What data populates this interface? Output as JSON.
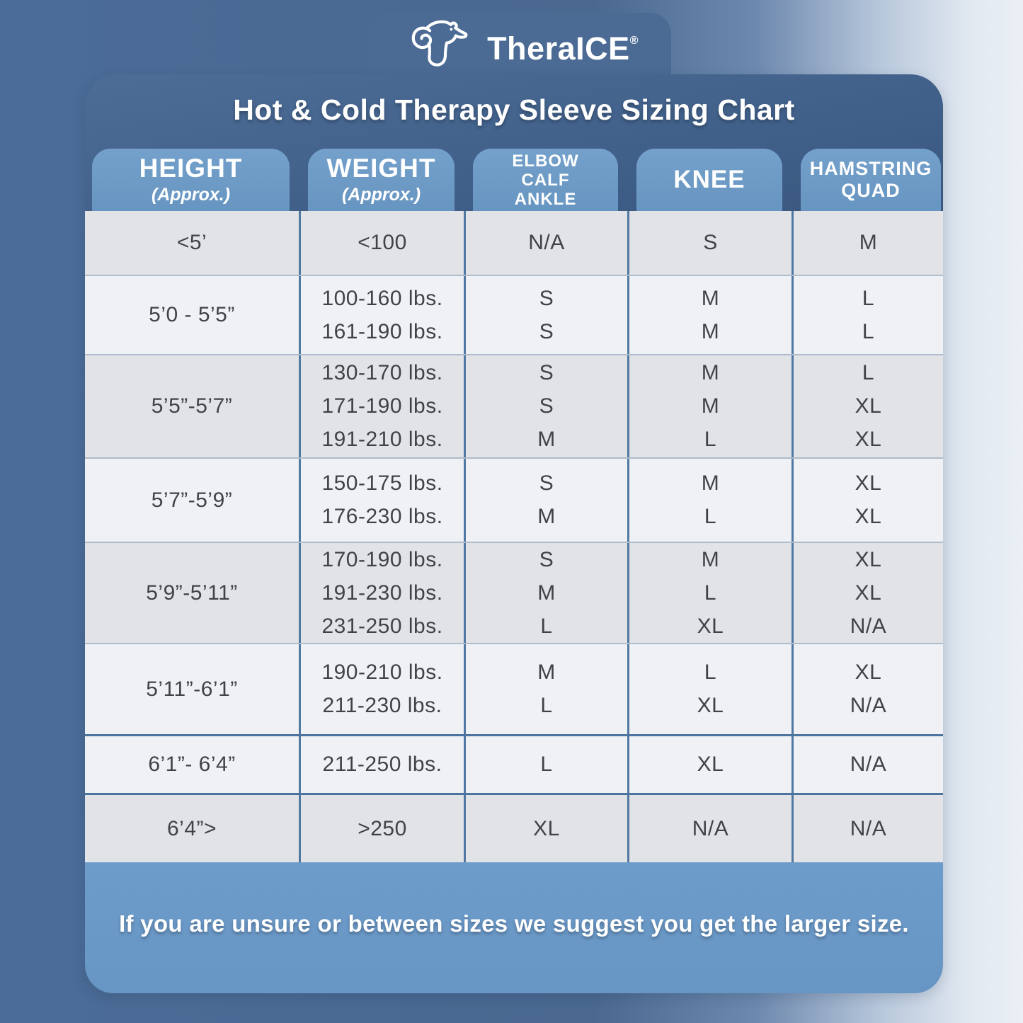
{
  "logo": {
    "brand": "TheraICE",
    "registered_mark": "®",
    "icon": "polar-bear-icon"
  },
  "title": "Hot & Cold Therapy Sleeve Sizing Chart",
  "table": {
    "columns": [
      {
        "label": "HEIGHT",
        "sublabel": "(Approx.)"
      },
      {
        "label": "WEIGHT",
        "sublabel": "(Approx.)"
      },
      {
        "label": "ELBOW\nCALF\nANKLE"
      },
      {
        "label": "KNEE"
      },
      {
        "label": "HAMSTRING\nQUAD"
      }
    ],
    "rows": [
      {
        "height": "<5’",
        "weights": [
          "<100"
        ],
        "elbow_calf_ankle": [
          "N/A"
        ],
        "knee": [
          "S"
        ],
        "hamstring_quad": [
          "M"
        ]
      },
      {
        "height": "5’0 - 5’5”",
        "weights": [
          "100-160 lbs.",
          "161-190 lbs."
        ],
        "elbow_calf_ankle": [
          "S",
          "S"
        ],
        "knee": [
          "M",
          "M"
        ],
        "hamstring_quad": [
          "L",
          "L"
        ]
      },
      {
        "height": "5’5”-5’7”",
        "weights": [
          "130-170 lbs.",
          "171-190 lbs.",
          "191-210 lbs."
        ],
        "elbow_calf_ankle": [
          "S",
          "S",
          "M"
        ],
        "knee": [
          "M",
          "M",
          "L"
        ],
        "hamstring_quad": [
          "L",
          "XL",
          "XL"
        ]
      },
      {
        "height": "5’7”-5’9”",
        "weights": [
          "150-175 lbs.",
          "176-230 lbs."
        ],
        "elbow_calf_ankle": [
          "S",
          "M"
        ],
        "knee": [
          "M",
          "L"
        ],
        "hamstring_quad": [
          "XL",
          "XL"
        ]
      },
      {
        "height": "5’9”-5’11”",
        "weights": [
          "170-190 lbs.",
          "191-230 lbs.",
          "231-250 lbs."
        ],
        "elbow_calf_ankle": [
          "S",
          "M",
          "L"
        ],
        "knee": [
          "M",
          "L",
          "XL"
        ],
        "hamstring_quad": [
          "XL",
          "XL",
          "N/A"
        ]
      },
      {
        "height": "5’11”-6’1”",
        "weights": [
          "190-210 lbs.",
          "211-230 lbs."
        ],
        "elbow_calf_ankle": [
          "M",
          "L"
        ],
        "knee": [
          "L",
          "XL"
        ],
        "hamstring_quad": [
          "XL",
          "N/A"
        ]
      },
      {
        "height": "6’1”- 6’4”",
        "weights": [
          "211-250 lbs."
        ],
        "elbow_calf_ankle": [
          "L"
        ],
        "knee": [
          "XL"
        ],
        "hamstring_quad": [
          "N/A"
        ]
      },
      {
        "height": "6’4”>",
        "weights": [
          ">250"
        ],
        "elbow_calf_ankle": [
          "XL"
        ],
        "knee": [
          "N/A"
        ],
        "hamstring_quad": [
          "N/A"
        ]
      }
    ]
  },
  "footer": {
    "note": "If you are unsure or between sizes we suggest you get the larger size."
  },
  "colors": {
    "page_left": "#4b6c98",
    "page_right": "#ebf0f6",
    "card": "#44618a",
    "header_tab": "#6f9dc7",
    "footer_bar": "#6d9bc9",
    "row_dark": "#e2e3e7",
    "row_light": "#f0f1f4",
    "column_divider": "#5078a3",
    "cell_text": "#3f4347",
    "header_text": "#ffffff"
  }
}
